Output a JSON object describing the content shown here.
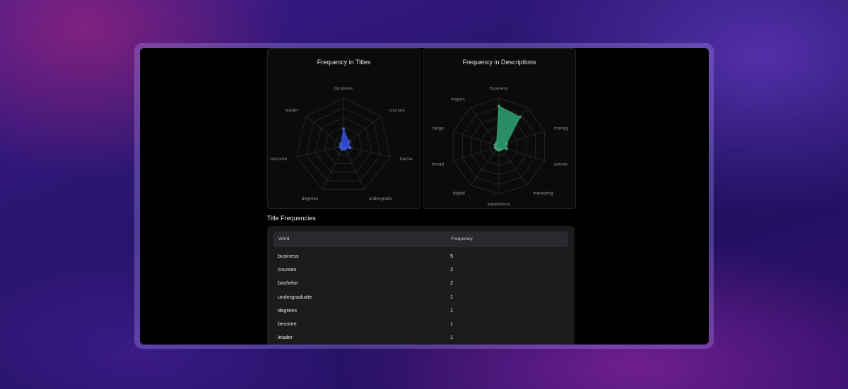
{
  "charts": {
    "titles": {
      "title": "Frequency in Titles",
      "axes": [
        "business",
        "courses",
        "bache",
        "undergradu",
        "degrees",
        "become",
        "leader"
      ],
      "values": [
        5,
        2,
        2,
        1,
        1,
        1,
        1
      ],
      "max": 14,
      "color": "#2f4fd6"
    },
    "descriptions": {
      "title": "Frequency in Descriptions",
      "axes": [
        "business",
        "",
        "manag",
        "accour",
        "marketing",
        "experience",
        "digital",
        "broad",
        "range",
        "majors"
      ],
      "values": [
        10,
        9,
        2,
        2,
        1,
        1,
        1,
        1,
        1,
        1
      ],
      "max": 12,
      "color": "#2e9a6e"
    }
  },
  "chart_data": [
    {
      "type": "radar",
      "title": "Frequency in Titles",
      "categories": [
        "business",
        "courses",
        "bache",
        "undergradu",
        "degrees",
        "become",
        "leader"
      ],
      "values": [
        5,
        2,
        2,
        1,
        1,
        1,
        1
      ]
    },
    {
      "type": "radar",
      "title": "Frequency in Descriptions",
      "categories": [
        "business",
        "",
        "manag",
        "accour",
        "marketing",
        "experience",
        "digital",
        "broad",
        "range",
        "majors"
      ],
      "values": [
        10,
        9,
        2,
        2,
        1,
        1,
        1,
        1,
        1,
        1
      ]
    }
  ],
  "table": {
    "section_title": "Title Frequencies",
    "headers": [
      "Word",
      "Frequency"
    ],
    "rows": [
      [
        "business",
        "5"
      ],
      [
        "courses",
        "2"
      ],
      [
        "bachelor",
        "2"
      ],
      [
        "undergraduate",
        "1"
      ],
      [
        "degrees",
        "1"
      ],
      [
        "become",
        "1"
      ],
      [
        "leader",
        "1"
      ]
    ]
  }
}
